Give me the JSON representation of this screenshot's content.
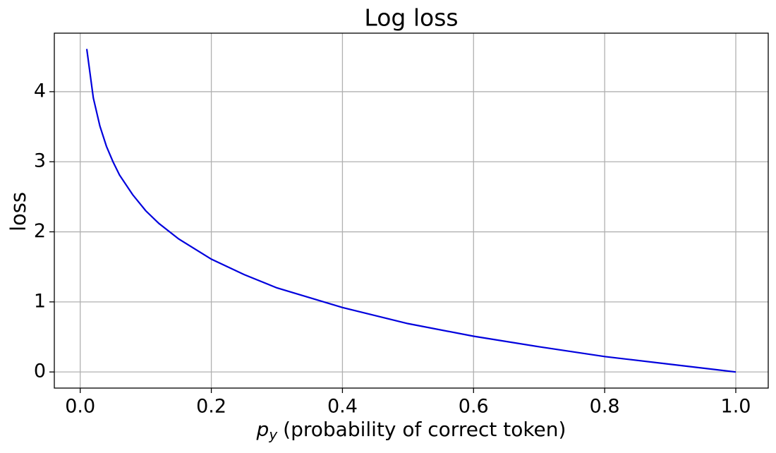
{
  "chart_data": {
    "type": "line",
    "title": "Log loss",
    "x_label": {
      "symbol": "p",
      "subscript": "y",
      "text": "(probability of correct token)"
    },
    "y_label": "loss",
    "x": [
      0.01,
      0.02,
      0.03,
      0.04,
      0.05,
      0.06,
      0.08,
      0.1,
      0.12,
      0.15,
      0.2,
      0.25,
      0.3,
      0.4,
      0.5,
      0.6,
      0.7,
      0.8,
      0.9,
      1.0
    ],
    "series": [
      {
        "name": "log loss",
        "color": "#0000dd",
        "values": [
          4.61,
          3.91,
          3.51,
          3.22,
          3.0,
          2.81,
          2.53,
          2.3,
          2.12,
          1.9,
          1.61,
          1.39,
          1.2,
          0.92,
          0.69,
          0.51,
          0.36,
          0.22,
          0.11,
          0
        ]
      }
    ],
    "xlim": [
      -0.0395,
      1.0495
    ],
    "ylim": [
      -0.23,
      4.835
    ],
    "xticks": [
      {
        "value": 0,
        "label": "0.0"
      },
      0.2,
      0.4,
      0.6,
      0.8,
      {
        "value": 1,
        "label": "1.0"
      }
    ],
    "yticks": [
      0,
      1,
      2,
      3,
      4
    ],
    "grid": true
  }
}
